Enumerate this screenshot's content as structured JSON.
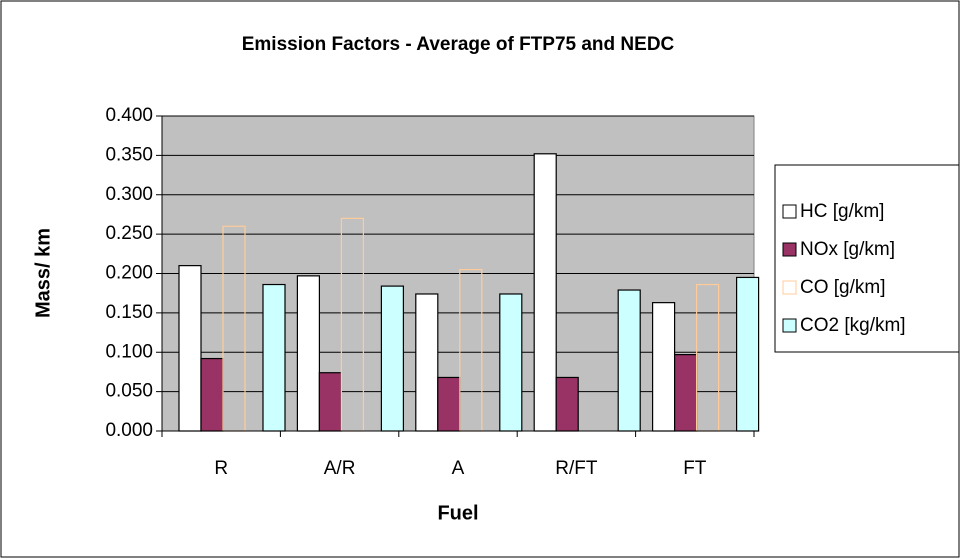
{
  "chart_data": {
    "type": "bar",
    "title": "Emission Factors - Average of FTP75 and NEDC",
    "x_label": "Fuel",
    "y_label": "Mass/ km",
    "categories": [
      "R",
      "A/R",
      "A",
      "R/FT",
      "FT"
    ],
    "series": [
      {
        "name": "HC [g/km]",
        "color": "#ffffff",
        "edgecolor": "#000000",
        "values": [
          0.21,
          0.197,
          0.174,
          0.352,
          0.163
        ]
      },
      {
        "name": "NOx [g/km]",
        "color": "#993366",
        "edgecolor": "#000000",
        "values": [
          0.092,
          0.074,
          0.068,
          0.068,
          0.097
        ]
      },
      {
        "name": "CO [g/km]",
        "color": "none",
        "edgecolor": "#ffcc99",
        "values": [
          0.26,
          0.27,
          0.205,
          0,
          0.186
        ]
      },
      {
        "name": "CO2 [kg/km]",
        "color": "#ccffff",
        "edgecolor": "#000000",
        "values": [
          0.186,
          0.184,
          0.174,
          0.179,
          0.195
        ]
      }
    ],
    "ylim": [
      0,
      0.4
    ],
    "yticks": [
      {
        "value": 0,
        "label": "0.000"
      },
      {
        "value": 0.05,
        "label": "0.050"
      },
      {
        "value": 0.1,
        "label": "0.100"
      },
      {
        "value": 0.15,
        "label": "0.150"
      },
      {
        "value": 0.2,
        "label": "0.200"
      },
      {
        "value": 0.25,
        "label": "0.250"
      },
      {
        "value": 0.3,
        "label": "0.300"
      },
      {
        "value": 0.35,
        "label": "0.350"
      },
      {
        "value": 0.4,
        "label": "0.400"
      }
    ],
    "grid": true,
    "plot_background": "#c0c0c0",
    "legend": "right"
  }
}
